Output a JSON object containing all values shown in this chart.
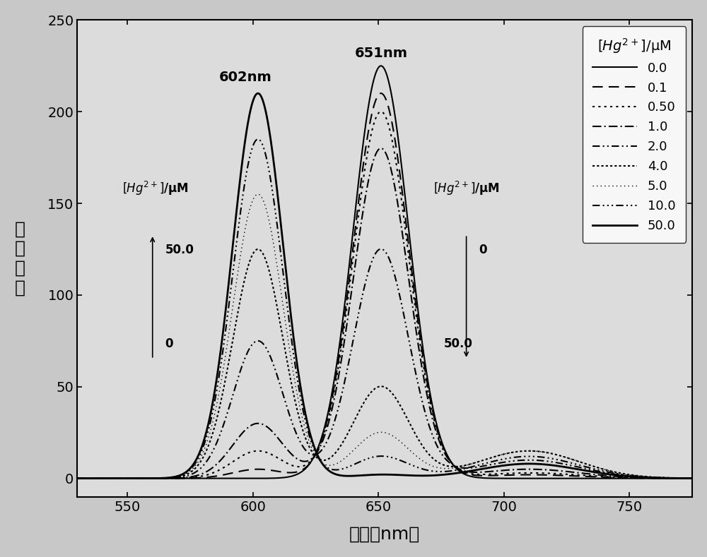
{
  "xlabel": "波长（nm）",
  "ylabel": "荧光强度",
  "xlim": [
    530,
    775
  ],
  "ylim": [
    -10,
    250
  ],
  "yticks": [
    0,
    50,
    100,
    150,
    200,
    250
  ],
  "xticks": [
    550,
    600,
    650,
    700,
    750
  ],
  "peak1_nm": 602,
  "peak2_nm": 651,
  "peak1_label": "602nm",
  "peak2_label": "651nm",
  "concentrations": [
    0.0,
    0.1,
    0.5,
    1.0,
    2.0,
    4.0,
    5.0,
    10.0,
    50.0
  ],
  "legend_labels": [
    "0.0",
    "0.1",
    "0.50",
    "1.0",
    "2.0",
    "4.0",
    "5.0",
    "10.0",
    "50.0"
  ],
  "background_color": "#dcdcdc",
  "figure_background": "#c8c8c8",
  "peak602_amps": [
    0,
    5,
    15,
    30,
    75,
    125,
    155,
    185,
    210
  ],
  "peak651_amps": [
    225,
    210,
    200,
    180,
    125,
    50,
    25,
    12,
    2
  ],
  "peak710_amps": [
    0,
    2,
    3,
    5,
    10,
    15,
    15,
    12,
    8
  ],
  "sigma602": 10,
  "sigma651": 11,
  "sigma710": 20
}
